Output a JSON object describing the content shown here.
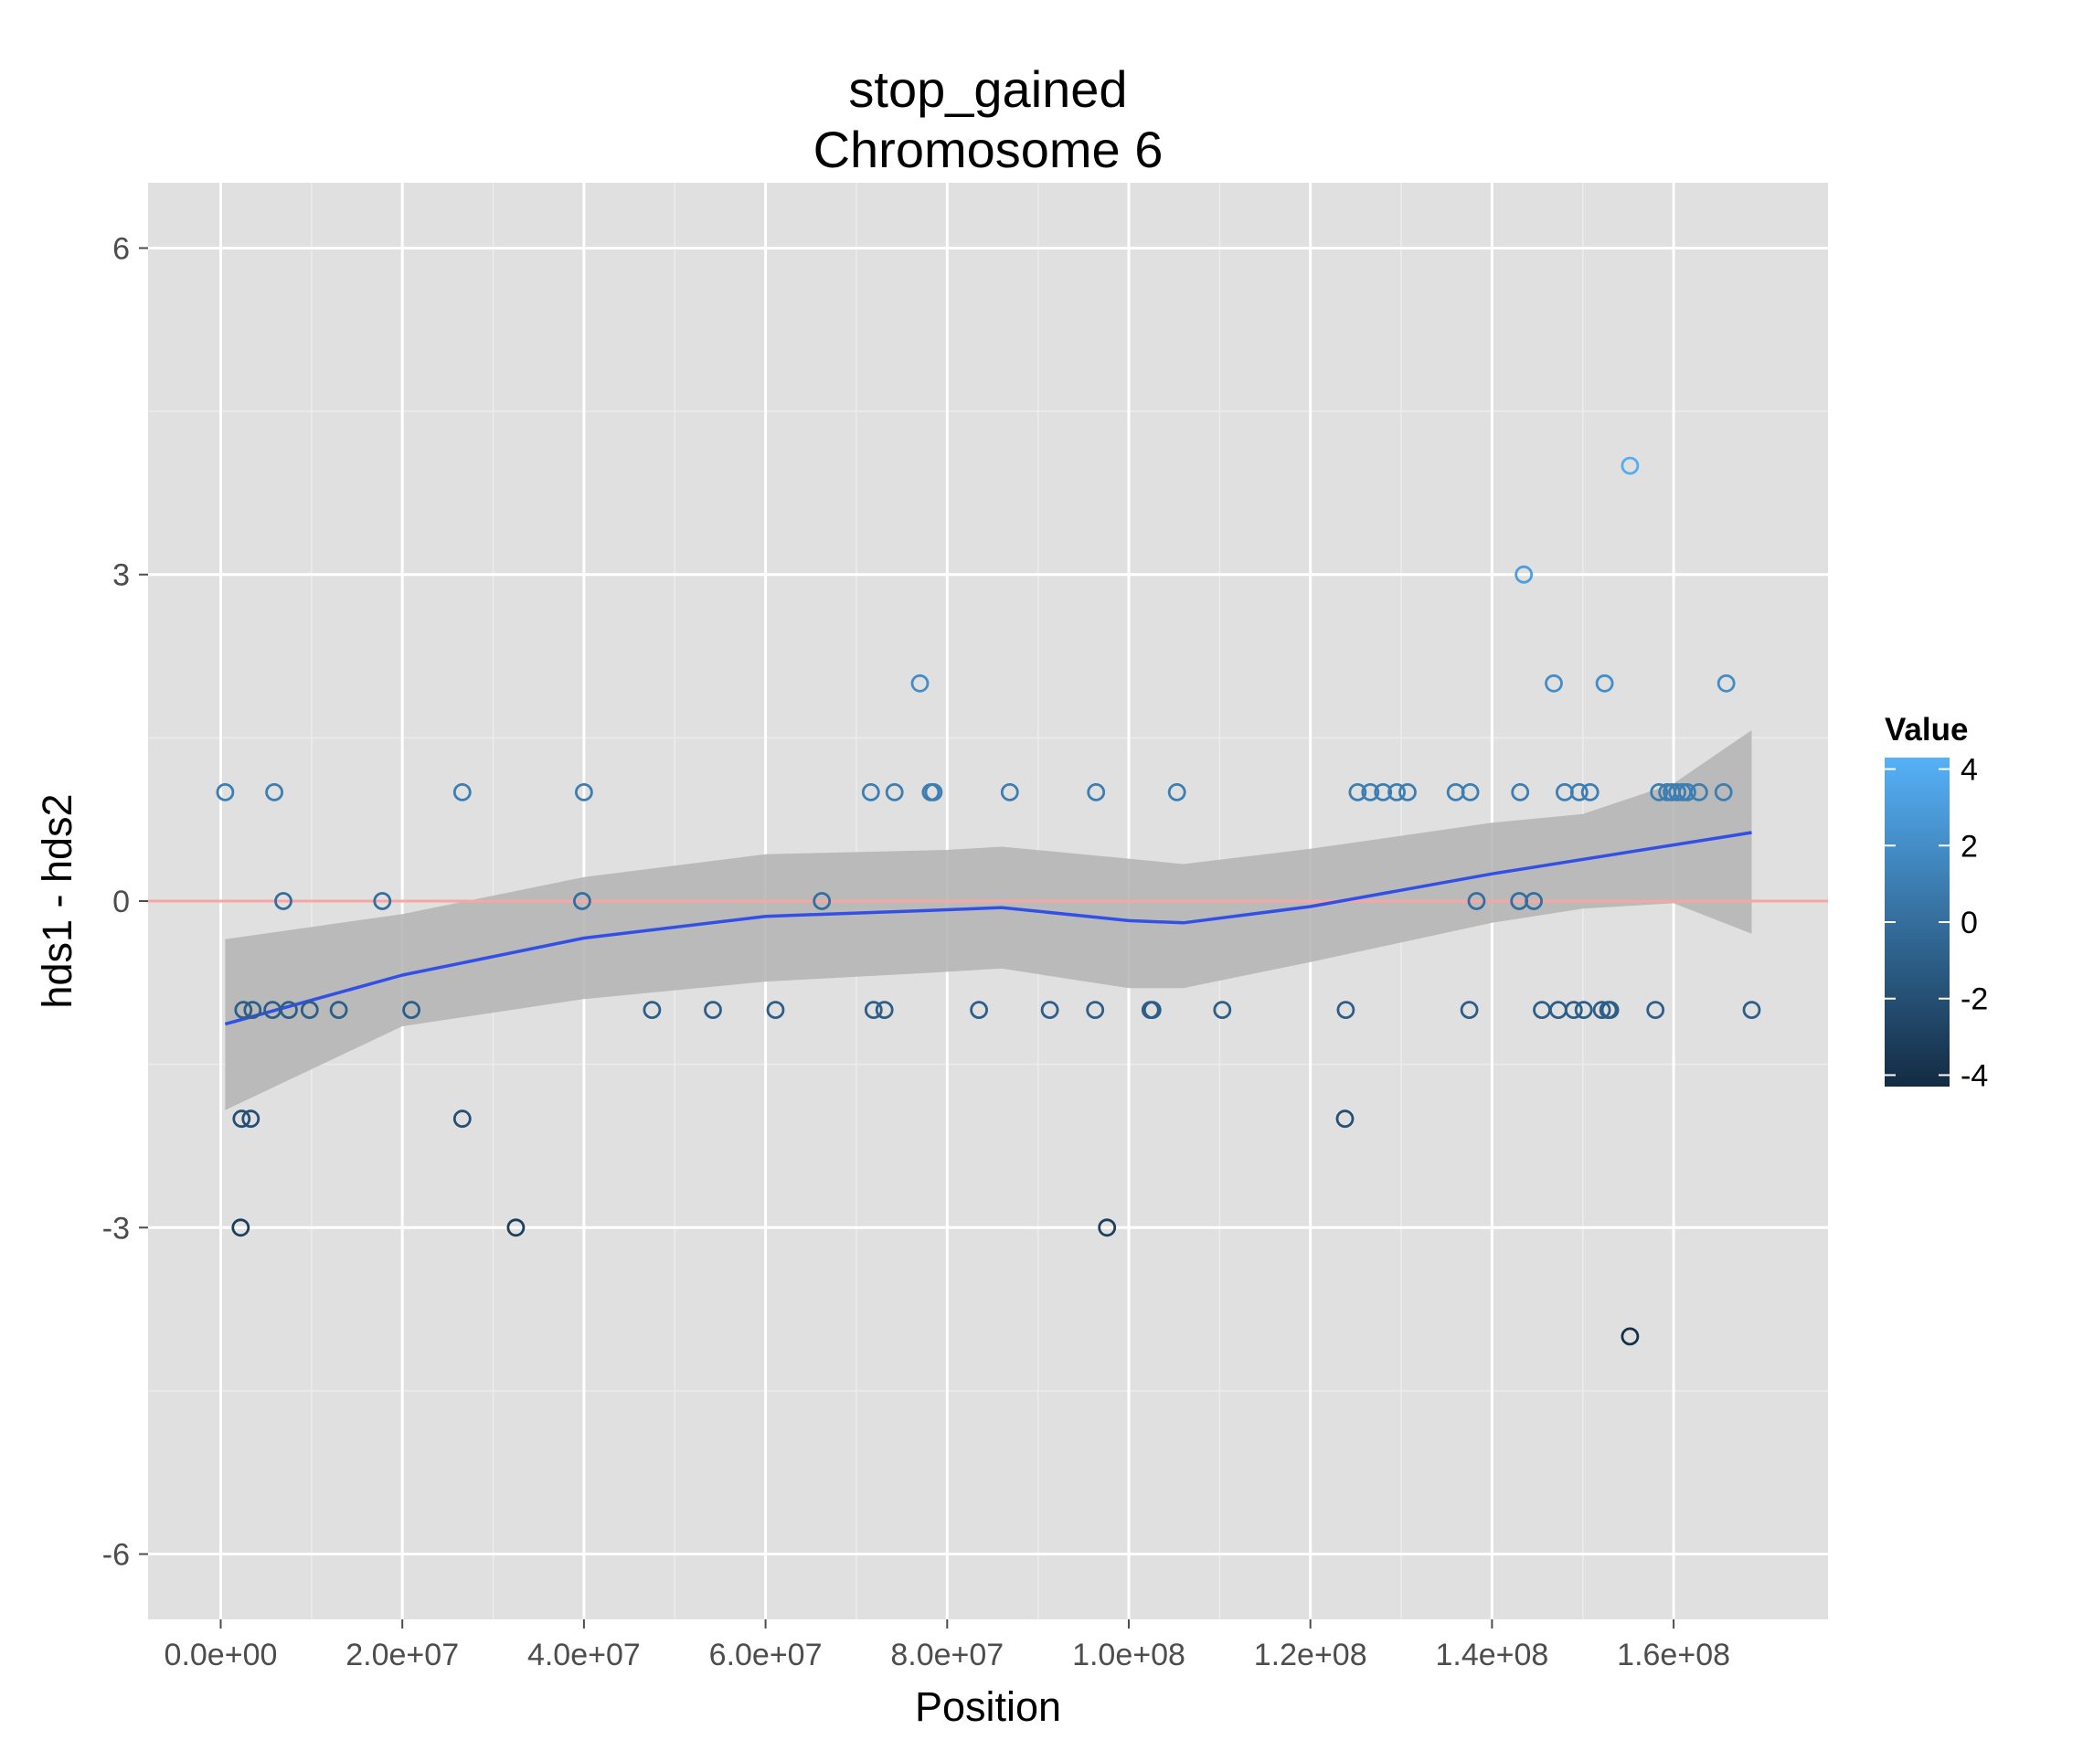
{
  "chart_data": {
    "type": "scatter",
    "title": [
      "stop_gained",
      "Chromosome 6"
    ],
    "xlabel": "Position",
    "ylabel": "hds1 - hds2",
    "xlim": [
      -8000000,
      177000000
    ],
    "ylim": [
      -6.6,
      6.6
    ],
    "x_ticks": [
      0,
      20000000,
      40000000,
      60000000,
      80000000,
      100000000,
      120000000,
      140000000,
      160000000
    ],
    "x_tick_labels": [
      "0.0e+00",
      "2.0e+07",
      "4.0e+07",
      "6.0e+07",
      "8.0e+07",
      "1.0e+08",
      "1.2e+08",
      "1.4e+08",
      "1.6e+08"
    ],
    "y_ticks": [
      -6,
      -3,
      0,
      3,
      6
    ],
    "y_tick_labels": [
      "-6",
      "-3",
      "0",
      "3",
      "6"
    ],
    "grid": true,
    "reference_line": {
      "y": 0,
      "color": "#f8a5a5"
    },
    "smooth_color": "#3350e6",
    "ribbon_color": "#b3b3b3",
    "panel_background": "#e0e0e0",
    "legend": {
      "title": "Value",
      "position": "right",
      "range": [
        -4.3,
        4.3
      ],
      "ticks": [
        4,
        2,
        0,
        -2,
        -4
      ],
      "tick_labels": [
        "4",
        "2",
        "0",
        "-2",
        "-4"
      ],
      "color_low": "#132b43",
      "color_high": "#56b1f7"
    },
    "points": [
      [
        500000,
        1
      ],
      [
        2500000,
        -1
      ],
      [
        2300000,
        -2
      ],
      [
        2200000,
        -3
      ],
      [
        3300000,
        -2
      ],
      [
        3500000,
        -1
      ],
      [
        5700000,
        -1
      ],
      [
        5900000,
        1
      ],
      [
        6900000,
        0
      ],
      [
        7500000,
        -1
      ],
      [
        9800000,
        -1
      ],
      [
        13000000,
        -1
      ],
      [
        17800000,
        0
      ],
      [
        21000000,
        -1
      ],
      [
        26600000,
        1
      ],
      [
        26600000,
        -2
      ],
      [
        32500000,
        -3
      ],
      [
        39800000,
        0
      ],
      [
        40000000,
        1
      ],
      [
        47500000,
        -1
      ],
      [
        54200000,
        -1
      ],
      [
        61100000,
        -1
      ],
      [
        66200000,
        0
      ],
      [
        71600000,
        1
      ],
      [
        71900000,
        -1
      ],
      [
        73100000,
        -1
      ],
      [
        74200000,
        1
      ],
      [
        77000000,
        2
      ],
      [
        78200000,
        1
      ],
      [
        78500000,
        1
      ],
      [
        83500000,
        -1
      ],
      [
        86900000,
        1
      ],
      [
        91300000,
        -1
      ],
      [
        96300000,
        -1
      ],
      [
        96400000,
        1
      ],
      [
        97600000,
        -3
      ],
      [
        102400000,
        -1
      ],
      [
        102600000,
        -1
      ],
      [
        105300000,
        1
      ],
      [
        110300000,
        -1
      ],
      [
        123800000,
        -2
      ],
      [
        123900000,
        -1
      ],
      [
        125200000,
        1
      ],
      [
        126600000,
        1
      ],
      [
        128000000,
        1
      ],
      [
        129500000,
        1
      ],
      [
        130700000,
        1
      ],
      [
        136000000,
        1
      ],
      [
        137500000,
        -1
      ],
      [
        137600000,
        1
      ],
      [
        138300000,
        0
      ],
      [
        143000000,
        0
      ],
      [
        143100000,
        1
      ],
      [
        143500000,
        3
      ],
      [
        144600000,
        0
      ],
      [
        145500000,
        -1
      ],
      [
        146800000,
        2
      ],
      [
        147300000,
        -1
      ],
      [
        148000000,
        1
      ],
      [
        149000000,
        -1
      ],
      [
        149600000,
        1
      ],
      [
        150100000,
        -1
      ],
      [
        150800000,
        1
      ],
      [
        152100000,
        -1
      ],
      [
        152400000,
        2
      ],
      [
        152800000,
        -1
      ],
      [
        153000000,
        -1
      ],
      [
        155200000,
        4
      ],
      [
        155200000,
        -4
      ],
      [
        158000000,
        -1
      ],
      [
        158400000,
        1
      ],
      [
        159300000,
        1
      ],
      [
        159800000,
        1
      ],
      [
        160400000,
        1
      ],
      [
        161000000,
        1
      ],
      [
        161500000,
        1
      ],
      [
        162800000,
        1
      ],
      [
        165500000,
        1
      ],
      [
        165800000,
        2
      ],
      [
        168600000,
        -1
      ]
    ],
    "smooth": {
      "x": [
        500000,
        20000000,
        40000000,
        60000000,
        80000000,
        86000000,
        100000000,
        106000000,
        120000000,
        140000000,
        168600000
      ],
      "y": [
        -1.13,
        -0.68,
        -0.34,
        -0.14,
        -0.08,
        -0.06,
        -0.18,
        -0.2,
        -0.05,
        0.25,
        0.63
      ]
    },
    "ribbon": {
      "x": [
        500000,
        20000000,
        40000000,
        60000000,
        80000000,
        86000000,
        100000000,
        106000000,
        120000000,
        140000000,
        150000000,
        160000000,
        168600000
      ],
      "upper": [
        -0.35,
        -0.12,
        0.22,
        0.43,
        0.47,
        0.5,
        0.39,
        0.34,
        0.48,
        0.72,
        0.8,
        1.08,
        1.57
      ],
      "lower": [
        -1.92,
        -1.15,
        -0.9,
        -0.74,
        -0.65,
        -0.62,
        -0.8,
        -0.8,
        -0.56,
        -0.2,
        -0.07,
        -0.02,
        -0.3
      ]
    }
  }
}
